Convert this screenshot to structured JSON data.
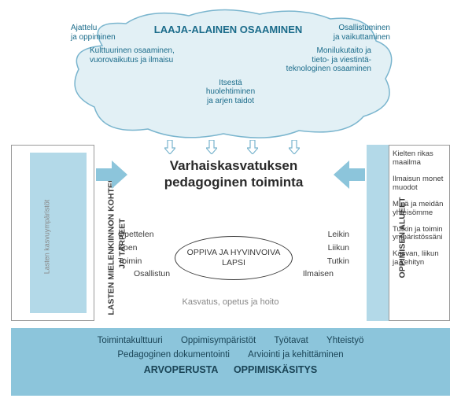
{
  "colors": {
    "cloud_fill": "#e2f0f5",
    "cloud_stroke": "#7ab5ce",
    "panel_light": "#b3d9e8",
    "panel_dark": "#8cc5db",
    "text_dark": "#3a3a3a",
    "text_teal": "#1a6b8a",
    "text_gray": "#888"
  },
  "cloud": {
    "title": "LAAJA-ALAINEN OSAAMINEN",
    "items": {
      "tl": "Ajattelu\nja oppiminen",
      "tr": "Osallistuminen\nja vaikuttaminen",
      "ml": "Kulttuurinen osaaminen,\nvuorovaikutus ja ilmaisu",
      "mr": "Monilukutaito ja\ntieto- ja viestintä-\nteknologinen osaaminen",
      "bc": "Itsestä\nhuolehtiminen\nja arjen taidot"
    }
  },
  "left": {
    "outer": "Lasten kasvuympäristöt",
    "inner": "LASTEN MIELENKIINNON KOHTEET\nJA TARPEET"
  },
  "right": {
    "title": "OPPIMISEN ALUEET",
    "items": [
      "Kielten rikas maailma",
      "Ilmaisun monet muodot",
      "Minä ja meidän yhteisömme",
      "Tutkin ja toimin ympäristössäni",
      "Kasvan, liikun ja kehityn"
    ]
  },
  "center": {
    "title1": "Varhaiskasvatuksen",
    "title2": "pedagoginen toiminta",
    "oval": "OPPIVA JA HYVINVOIVA\nLAPSI",
    "verbs_left": [
      "Opettelen",
      "Koen",
      "Toimin",
      "Osallistun"
    ],
    "verbs_right": [
      "Leikin",
      "Liikun",
      "Tutkin",
      "Ilmaisen"
    ],
    "bottom": "Kasvatus, opetus ja hoito"
  },
  "footer": {
    "row1": [
      "Toimintakulttuuri",
      "Oppimisympäristöt",
      "Työtavat",
      "Yhteistyö"
    ],
    "row2": [
      "Pedagoginen dokumentointi",
      "Arviointi ja kehittäminen"
    ],
    "row3": [
      "ARVOPERUSTA",
      "OPPIMISKÄSITYS"
    ]
  }
}
